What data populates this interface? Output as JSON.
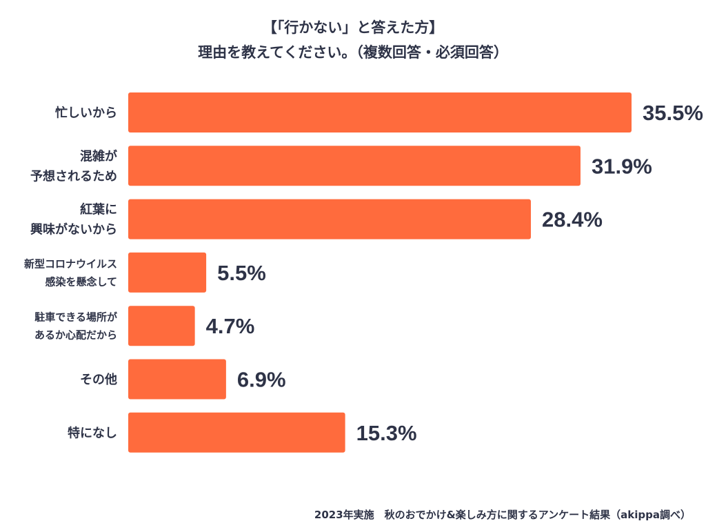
{
  "title": {
    "line1": "【「行かない」と答えた方】",
    "line2": "理由を教えてください。（複数回答・必須回答）"
  },
  "chart_data": {
    "type": "bar",
    "orientation": "horizontal",
    "title": "【「行かない」と答えた方】理由を教えてください。（複数回答・必須回答）",
    "categories": [
      [
        "忙しいから"
      ],
      [
        "混雑が",
        "予想されるため"
      ],
      [
        "紅葉に",
        "興味がないから"
      ],
      [
        "新型コロナウイルス",
        "感染を懸念して"
      ],
      [
        "駐車できる場所が",
        "あるか心配だから"
      ],
      [
        "その他"
      ],
      [
        "特になし"
      ]
    ],
    "values": [
      35.5,
      31.9,
      28.4,
      5.5,
      4.7,
      6.9,
      15.3
    ],
    "value_labels": [
      "35.5%",
      "31.9%",
      "28.4%",
      "5.5%",
      "4.7%",
      "6.9%",
      "15.3%"
    ],
    "unit": "%",
    "xlim": [
      0,
      35.5
    ],
    "grid": false,
    "legend": "none",
    "bar_color": "#ff6b3d"
  },
  "footer": "2023年実施　秋のおでかけ&楽しみ方に関するアンケート結果（akippa調べ）",
  "colors": {
    "bar": "#ff6b3d",
    "text": "#2e3347"
  }
}
